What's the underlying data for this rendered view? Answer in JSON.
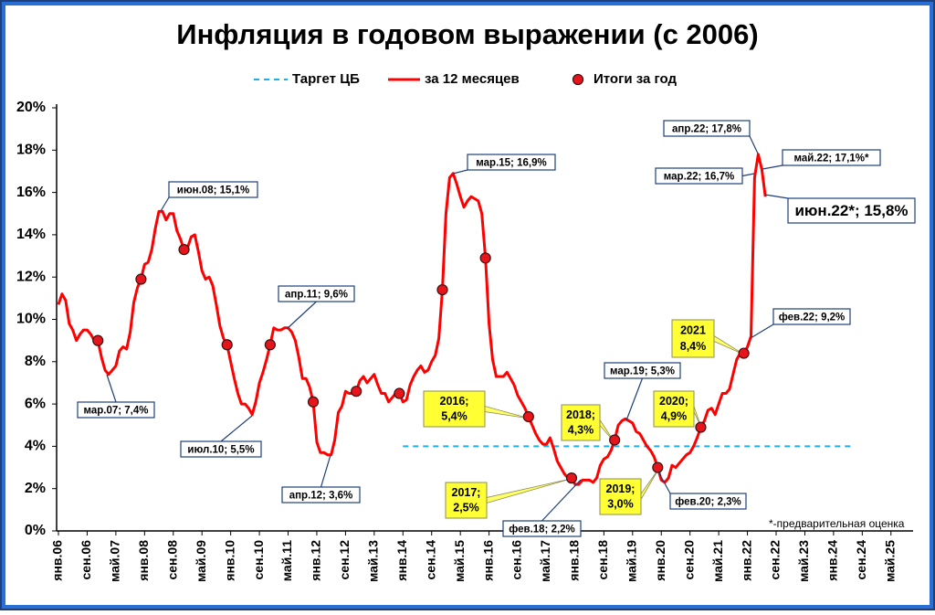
{
  "chart_data": {
    "type": "line",
    "title": "Инфляция в годовом выражении (с 2006)",
    "footnote": "*-предварительная оценка",
    "xlim": [
      -0.5,
      235
    ],
    "xticks": [
      {
        "value": 0,
        "label": "янв.06"
      },
      {
        "value": 8,
        "label": "сен.06"
      },
      {
        "value": 16,
        "label": "май.07"
      },
      {
        "value": 24,
        "label": "янв.08"
      },
      {
        "value": 32,
        "label": "сен.08"
      },
      {
        "value": 40,
        "label": "май.09"
      },
      {
        "value": 48,
        "label": "янв.10"
      },
      {
        "value": 56,
        "label": "сен.10"
      },
      {
        "value": 64,
        "label": "май.11"
      },
      {
        "value": 72,
        "label": "янв.12"
      },
      {
        "value": 80,
        "label": "сен.12"
      },
      {
        "value": 88,
        "label": "май.13"
      },
      {
        "value": 96,
        "label": "янв.14"
      },
      {
        "value": 104,
        "label": "сен.14"
      },
      {
        "value": 112,
        "label": "май.15"
      },
      {
        "value": 120,
        "label": "янв.16"
      },
      {
        "value": 128,
        "label": "сен.16"
      },
      {
        "value": 136,
        "label": "май.17"
      },
      {
        "value": 144,
        "label": "янв.18"
      },
      {
        "value": 152,
        "label": "сен.18"
      },
      {
        "value": 160,
        "label": "май.19"
      },
      {
        "value": 168,
        "label": "янв.20"
      },
      {
        "value": 176,
        "label": "сен.20"
      },
      {
        "value": 184,
        "label": "май.21"
      },
      {
        "value": 192,
        "label": "янв.22"
      },
      {
        "value": 200,
        "label": "сен.22"
      },
      {
        "value": 208,
        "label": "май.23"
      },
      {
        "value": 216,
        "label": "янв.24"
      },
      {
        "value": 224,
        "label": "сен.24"
      },
      {
        "value": 232,
        "label": "май.25"
      }
    ],
    "ylim": [
      0,
      20
    ],
    "yticks": [
      {
        "value": 0,
        "label": "0%"
      },
      {
        "value": 2,
        "label": "2%"
      },
      {
        "value": 4,
        "label": "4%"
      },
      {
        "value": 6,
        "label": "6%"
      },
      {
        "value": 8,
        "label": "8%"
      },
      {
        "value": 10,
        "label": "10%"
      },
      {
        "value": 12,
        "label": "12%"
      },
      {
        "value": 14,
        "label": "14%"
      },
      {
        "value": 16,
        "label": "16%"
      },
      {
        "value": 18,
        "label": "18%"
      },
      {
        "value": 20,
        "label": "20%"
      }
    ],
    "series": [
      {
        "name": "Таргет ЦБ",
        "color": "#1ab0e8",
        "x": [
          96,
          221
        ],
        "values": [
          4,
          4
        ]
      },
      {
        "name": "за 12 месяцев",
        "color": "#ff0000",
        "values": [
          10.7,
          11.2,
          10.9,
          9.8,
          9.5,
          9.0,
          9.3,
          9.5,
          9.5,
          9.3,
          9.0,
          9.0,
          8.2,
          7.6,
          7.4,
          7.6,
          7.8,
          8.5,
          8.7,
          8.6,
          9.4,
          10.8,
          11.5,
          11.9,
          12.6,
          12.7,
          13.3,
          14.3,
          15.1,
          15.1,
          14.7,
          15.0,
          15.0,
          14.2,
          13.8,
          13.3,
          13.4,
          13.9,
          14.0,
          13.2,
          12.3,
          11.9,
          12.0,
          11.6,
          10.7,
          9.7,
          9.1,
          8.8,
          8.0,
          7.2,
          6.5,
          6.0,
          6.0,
          5.8,
          5.5,
          6.1,
          7.0,
          7.5,
          8.1,
          8.8,
          9.6,
          9.5,
          9.5,
          9.6,
          9.6,
          9.4,
          9.0,
          8.2,
          7.2,
          7.2,
          6.8,
          6.1,
          4.2,
          3.7,
          3.7,
          3.6,
          3.6,
          4.3,
          5.6,
          5.9,
          6.6,
          6.5,
          6.5,
          6.6,
          7.1,
          7.3,
          7.0,
          7.2,
          7.4,
          6.9,
          6.5,
          6.5,
          6.1,
          6.3,
          6.5,
          6.5,
          6.1,
          6.2,
          6.9,
          7.3,
          7.6,
          7.8,
          7.5,
          7.6,
          8.0,
          8.3,
          9.1,
          11.4,
          15.0,
          16.7,
          16.9,
          16.4,
          15.8,
          15.3,
          15.6,
          15.8,
          15.7,
          15.6,
          15.0,
          12.9,
          9.8,
          8.1,
          7.3,
          7.3,
          7.3,
          7.5,
          7.2,
          6.9,
          6.4,
          6.1,
          5.8,
          5.4,
          5.0,
          4.6,
          4.3,
          4.1,
          4.1,
          4.4,
          3.9,
          3.3,
          3.0,
          2.7,
          2.5,
          2.5,
          2.2,
          2.2,
          2.4,
          2.4,
          2.4,
          2.3,
          2.5,
          3.1,
          3.4,
          3.5,
          3.8,
          4.3,
          5.0,
          5.2,
          5.3,
          5.2,
          5.1,
          4.7,
          4.6,
          4.3,
          4.0,
          3.8,
          3.5,
          3.0,
          2.4,
          2.3,
          2.5,
          3.1,
          3.0,
          3.2,
          3.4,
          3.6,
          3.7,
          4.0,
          4.4,
          4.9,
          5.2,
          5.7,
          5.8,
          5.5,
          6.0,
          6.5,
          6.5,
          6.7,
          7.4,
          8.1,
          8.4,
          8.4,
          8.7,
          9.2,
          16.7,
          17.8,
          17.1,
          15.8
        ]
      },
      {
        "name": "Итоги за год",
        "color": "#e8141c",
        "x": [
          11,
          23,
          35,
          47,
          59,
          71,
          83,
          95,
          107,
          119,
          131,
          143,
          155,
          167,
          179,
          191
        ],
        "values": [
          9.0,
          11.9,
          13.3,
          8.8,
          8.8,
          6.1,
          6.6,
          6.5,
          11.4,
          12.9,
          5.4,
          2.5,
          4.3,
          3.0,
          4.9,
          8.4
        ]
      }
    ],
    "annotations": [
      "мар.07; 7,4%",
      "июн.08; 15,1%",
      "июл.10; 5,5%",
      "апр.11; 9,6%",
      "апр.12; 3,6%",
      "мар.15; 16,9%",
      "фев.18; 2,2%",
      "мар.19; 5,3%",
      "фев.20; 2,3%",
      "апр.22; 17,8%",
      "май.22; 17,1%*",
      "мар.22; 16,7%",
      "июн.22*; 15,8%",
      "фев.22; 9,2%"
    ],
    "year_labels": [
      {
        "year": "2016;",
        "value": "5,4%"
      },
      {
        "year": "2018;",
        "value": "4,3%"
      },
      {
        "year": "2017;",
        "value": "2,5%"
      },
      {
        "year": "2019;",
        "value": "3,0%"
      },
      {
        "year": "2020;",
        "value": "4,9%"
      },
      {
        "year": "2021",
        "value": "8,4%"
      }
    ]
  }
}
